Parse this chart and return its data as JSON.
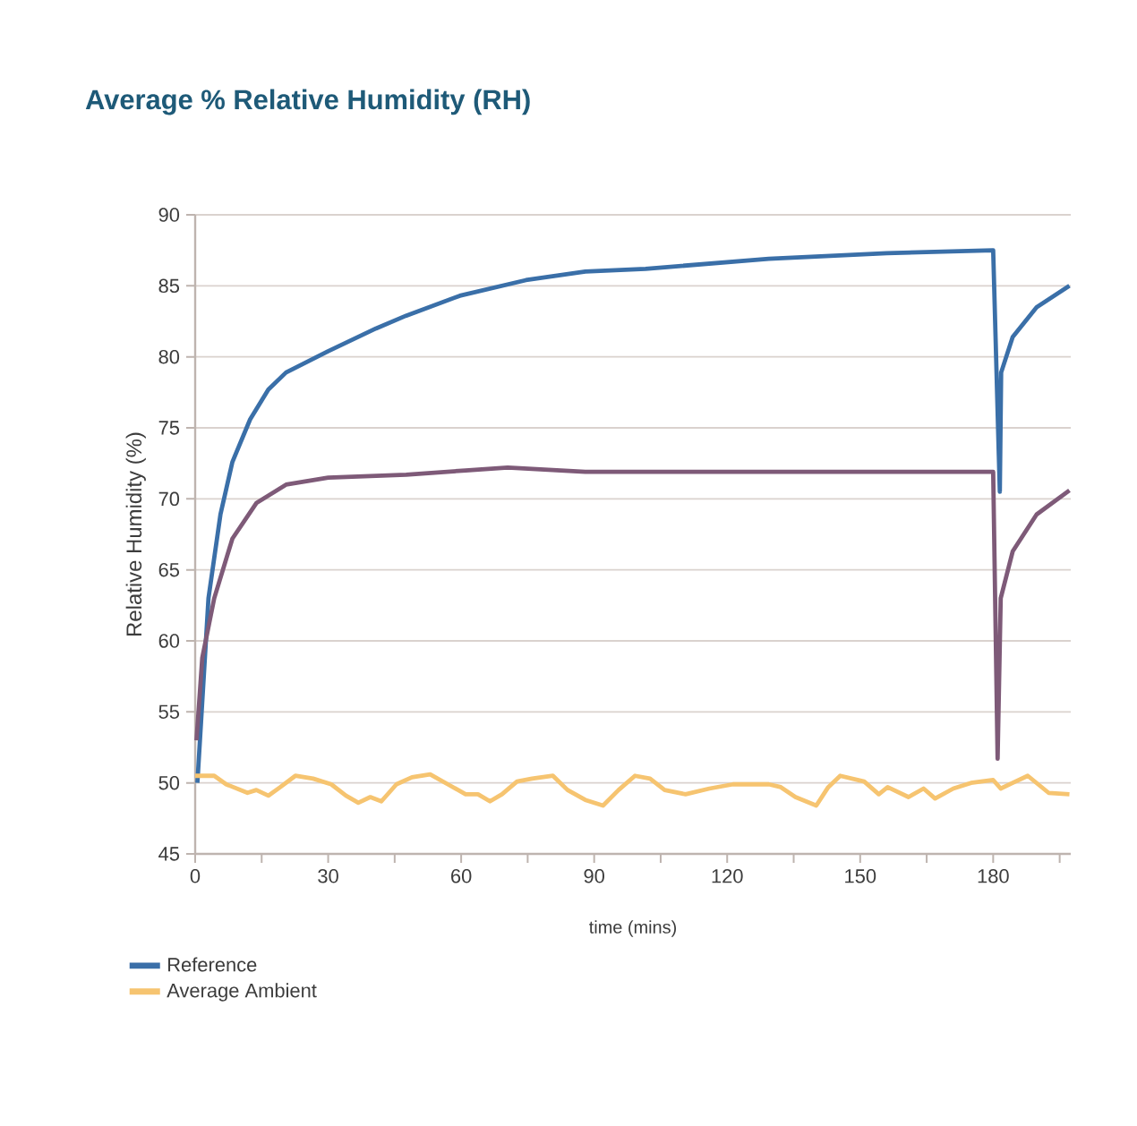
{
  "chart_data": {
    "type": "line",
    "title": "Average % Relative Humidity (RH)",
    "xlabel": "time (mins)",
    "ylabel": "Relative Humidity (%)",
    "xlim": [
      0,
      197.5
    ],
    "ylim": [
      45,
      90
    ],
    "xticks": [
      0,
      {
        "value": 15,
        "label": null
      },
      30,
      {
        "value": 45,
        "label": null
      },
      60,
      {
        "value": 75,
        "label": null
      },
      90,
      {
        "value": 105,
        "label": null
      },
      120,
      {
        "value": 135,
        "label": null
      },
      150,
      {
        "value": 165,
        "label": null
      },
      180,
      {
        "value": 195,
        "label": null
      }
    ],
    "yticks": [
      45,
      50,
      55,
      60,
      65,
      70,
      75,
      80,
      85,
      90
    ],
    "grid": "y",
    "legend": "bottom",
    "marker": "none",
    "line_style": "solid",
    "series": [
      {
        "name": "Reference",
        "color": "#3a6fa8",
        "x": [
          0.5,
          3,
          5.7,
          8.4,
          12.4,
          16.5,
          20.5,
          30,
          40.8,
          47.6,
          59.7,
          74.6,
          88,
          101.6,
          129.4,
          156,
          180,
          181.5,
          181.8,
          184.4,
          189.8,
          197.2
        ],
        "values": [
          50,
          63,
          68.9,
          72.6,
          75.6,
          77.7,
          78.9,
          80.4,
          82,
          82.9,
          84.3,
          85.4,
          86,
          86.2,
          86.9,
          87.3,
          87.5,
          70.5,
          78.9,
          81.4,
          83.5,
          85
        ]
      },
      {
        "color": "#7e5a78",
        "x": [
          0.3,
          1.6,
          4.3,
          8.4,
          13.8,
          20.5,
          30,
          47.6,
          61,
          70.5,
          88,
          120,
          150,
          180,
          181,
          181.7,
          184.4,
          189.8,
          197.2
        ],
        "values": [
          53,
          58.8,
          63,
          67.2,
          69.7,
          71,
          71.5,
          71.7,
          72,
          72.2,
          71.9,
          71.9,
          71.9,
          71.9,
          51.7,
          63,
          66.3,
          68.9,
          70.6
        ]
      },
      {
        "name": "Average Ambient",
        "color": "#f6c470",
        "x": [
          0,
          4.3,
          7,
          11.8,
          13.8,
          16.5,
          19.2,
          22.6,
          26.6,
          30.7,
          34,
          36.8,
          39.5,
          42,
          45.4,
          48.9,
          53,
          57,
          61,
          63.8,
          66.5,
          69.2,
          72.6,
          76,
          80.7,
          84,
          88,
          92,
          95.5,
          99.2,
          102.6,
          105.9,
          110.6,
          116,
          121.3,
          129.4,
          132.1,
          135.4,
          140.1,
          142.8,
          145.5,
          150.9,
          154.2,
          156.2,
          160.9,
          164.3,
          166.9,
          171,
          175,
          180,
          181.7,
          184.4,
          187.8,
          192.5,
          197.2
        ],
        "values": [
          50.5,
          50.5,
          49.9,
          49.3,
          49.5,
          49.1,
          49.7,
          50.5,
          50.3,
          49.9,
          49.1,
          48.6,
          49,
          48.7,
          49.9,
          50.4,
          50.6,
          49.9,
          49.2,
          49.2,
          48.7,
          49.2,
          50.1,
          50.3,
          50.5,
          49.5,
          48.8,
          48.4,
          49.5,
          50.5,
          50.3,
          49.5,
          49.2,
          49.6,
          49.9,
          49.9,
          49.7,
          49,
          48.4,
          49.7,
          50.5,
          50.1,
          49.2,
          49.7,
          49,
          49.6,
          48.9,
          49.6,
          50,
          50.2,
          49.6,
          50,
          50.5,
          49.3,
          49.2
        ]
      }
    ]
  }
}
